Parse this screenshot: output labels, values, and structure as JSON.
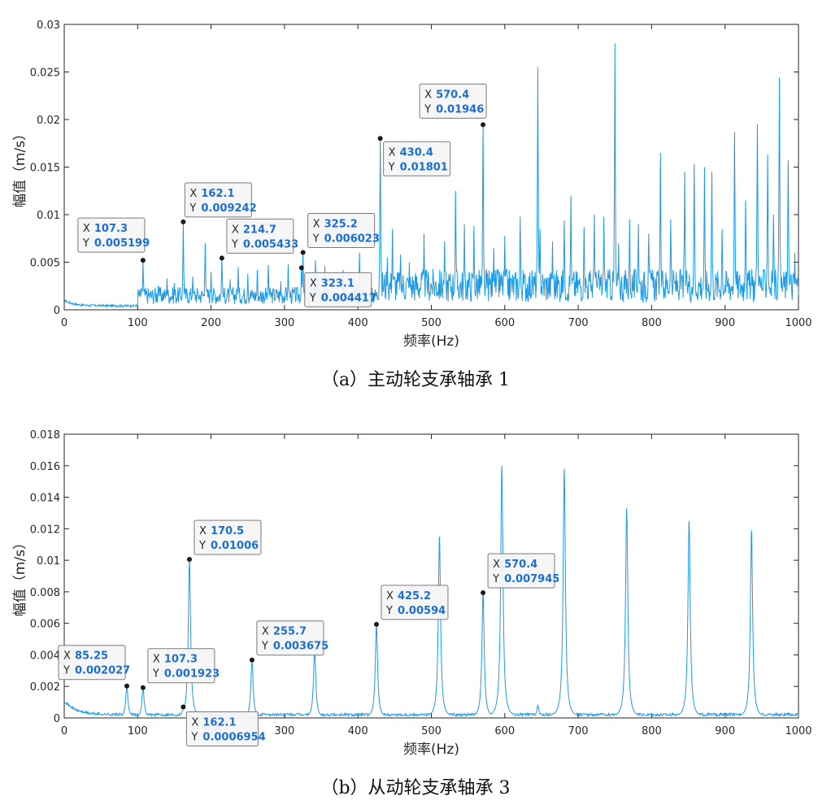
{
  "chart_data": [
    {
      "type": "line",
      "caption": "（a）主动轮支承轴承 1",
      "xlabel": "频率(Hz)",
      "ylabel": "幅值（m/s）",
      "xlim": [
        0,
        1000
      ],
      "ylim": [
        0,
        0.03
      ],
      "xticks": [
        "0",
        "100",
        "200",
        "300",
        "400",
        "500",
        "600",
        "700",
        "800",
        "900",
        "1000"
      ],
      "yticks": [
        "0",
        "0.005",
        "0.01",
        "0.015",
        "0.02",
        "0.025",
        "0.03"
      ],
      "line_color": "#1e9be6",
      "datatips": [
        {
          "x": "107.3",
          "y": "0.005199",
          "xv": 107.3,
          "yv": 0.005199,
          "side": "left"
        },
        {
          "x": "162.1",
          "y": "0.009242",
          "xv": 162.1,
          "yv": 0.009242,
          "side": "up"
        },
        {
          "x": "214.7",
          "y": "0.005433",
          "xv": 214.7,
          "yv": 0.005433,
          "side": "upright"
        },
        {
          "x": "325.2",
          "y": "0.006023",
          "xv": 325.2,
          "yv": 0.006023,
          "side": "upright"
        },
        {
          "x": "323.1",
          "y": "0.004417",
          "xv": 323.1,
          "yv": 0.004417,
          "side": "downright"
        },
        {
          "x": "430.4",
          "y": "0.01801",
          "xv": 430.4,
          "yv": 0.01801,
          "side": "downright"
        },
        {
          "x": "570.4",
          "y": "0.01946",
          "xv": 570.4,
          "yv": 0.01946,
          "side": "upleft"
        }
      ],
      "peaks": [
        [
          107.3,
          0.005199
        ],
        [
          128,
          0.0025
        ],
        [
          140,
          0.0033
        ],
        [
          150,
          0.0028
        ],
        [
          162.1,
          0.009242
        ],
        [
          175,
          0.0035
        ],
        [
          192,
          0.007
        ],
        [
          200,
          0.004
        ],
        [
          214.7,
          0.005433
        ],
        [
          226,
          0.0032
        ],
        [
          237,
          0.0045
        ],
        [
          250,
          0.0038
        ],
        [
          263,
          0.0042
        ],
        [
          278,
          0.0047
        ],
        [
          295,
          0.003
        ],
        [
          305,
          0.0048
        ],
        [
          323.1,
          0.004417
        ],
        [
          325.2,
          0.006023
        ],
        [
          342,
          0.0052
        ],
        [
          355,
          0.0046
        ],
        [
          380,
          0.0042
        ],
        [
          402,
          0.006
        ],
        [
          430.4,
          0.01801
        ],
        [
          440,
          0.0055
        ],
        [
          447,
          0.0085
        ],
        [
          458,
          0.0058
        ],
        [
          470,
          0.005
        ],
        [
          490,
          0.008
        ],
        [
          518,
          0.0072
        ],
        [
          533,
          0.0125
        ],
        [
          545,
          0.009
        ],
        [
          558,
          0.0088
        ],
        [
          570.4,
          0.01946
        ],
        [
          585,
          0.0065
        ],
        [
          600,
          0.0078
        ],
        [
          621,
          0.0098
        ],
        [
          645,
          0.0255
        ],
        [
          648,
          0.0085
        ],
        [
          665,
          0.0072
        ],
        [
          681,
          0.0094
        ],
        [
          690,
          0.012
        ],
        [
          708,
          0.0087
        ],
        [
          722,
          0.01
        ],
        [
          735,
          0.0098
        ],
        [
          750,
          0.028
        ],
        [
          755,
          0.007
        ],
        [
          770,
          0.0095
        ],
        [
          782,
          0.009
        ],
        [
          796,
          0.008
        ],
        [
          812,
          0.0165
        ],
        [
          826,
          0.0095
        ],
        [
          845,
          0.0145
        ],
        [
          858,
          0.0153
        ],
        [
          872,
          0.015
        ],
        [
          882,
          0.0145
        ],
        [
          896,
          0.0085
        ],
        [
          913,
          0.0187
        ],
        [
          928,
          0.0115
        ],
        [
          944,
          0.0195
        ],
        [
          958,
          0.0163
        ],
        [
          966,
          0.01
        ],
        [
          974,
          0.0244
        ],
        [
          986,
          0.0157
        ],
        [
          995,
          0.006
        ]
      ]
    },
    {
      "type": "line",
      "caption": "（b）从动轮支承轴承 3",
      "xlabel": "频率(Hz)",
      "ylabel": "幅值（m/s）",
      "xlim": [
        0,
        1000
      ],
      "ylim": [
        0,
        0.018
      ],
      "xticks": [
        "0",
        "100",
        "200",
        "300",
        "400",
        "500",
        "600",
        "700",
        "800",
        "900",
        "1000"
      ],
      "yticks": [
        "0",
        "0.002",
        "0.004",
        "0.006",
        "0.008",
        "0.01",
        "0.012",
        "0.014",
        "0.016",
        "0.018"
      ],
      "line_color": "#1e9be6",
      "datatips": [
        {
          "x": "85.25",
          "y": "0.002027",
          "xv": 85.25,
          "yv": 0.002027,
          "side": "upleft"
        },
        {
          "x": "107.3",
          "y": "0.001923",
          "xv": 107.3,
          "yv": 0.001923,
          "side": "upright"
        },
        {
          "x": "162.1",
          "y": "0.0006954",
          "xv": 162.1,
          "yv": 0.0006954,
          "side": "downright"
        },
        {
          "x": "170.5",
          "y": "0.01006",
          "xv": 170.5,
          "yv": 0.01006,
          "side": "upright"
        },
        {
          "x": "255.7",
          "y": "0.003675",
          "xv": 255.7,
          "yv": 0.003675,
          "side": "upright"
        },
        {
          "x": "425.2",
          "y": "0.00594",
          "xv": 425.2,
          "yv": 0.00594,
          "side": "upright"
        },
        {
          "x": "570.4",
          "y": "0.007945",
          "xv": 570.4,
          "yv": 0.007945,
          "side": "upright"
        }
      ],
      "peaks": [
        [
          85.25,
          0.002027
        ],
        [
          107.3,
          0.001923
        ],
        [
          162.1,
          0.0006954
        ],
        [
          170.5,
          0.01006
        ],
        [
          255.7,
          0.003675
        ],
        [
          341,
          0.0043
        ],
        [
          425.2,
          0.00594
        ],
        [
          511,
          0.0115
        ],
        [
          570.4,
          0.007945
        ],
        [
          596,
          0.016
        ],
        [
          645,
          0.0008
        ],
        [
          681,
          0.0158
        ],
        [
          766,
          0.0133
        ],
        [
          851,
          0.0125
        ],
        [
          936,
          0.0119
        ]
      ]
    }
  ]
}
